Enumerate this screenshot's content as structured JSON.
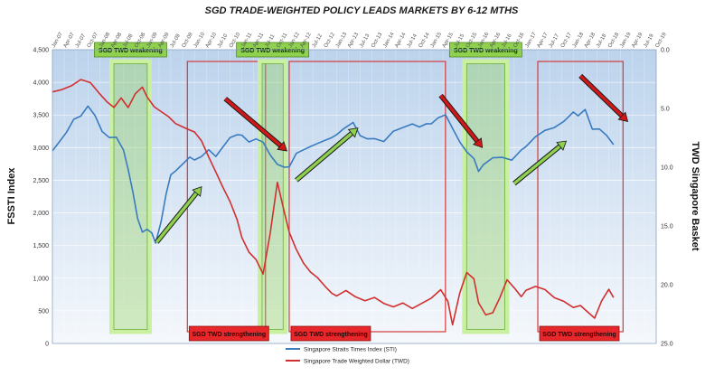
{
  "chart_data": {
    "type": "line",
    "title": "SGD TRADE-WEIGHTED  POLICY LEADS MARKETS BY 6-12 MTHS",
    "ylabel_left": "FSSTI Index",
    "ylabel_right": "TWD Singapore Basket",
    "ylim_left": [
      0,
      4500
    ],
    "ylim_right_inverted": [
      0.0,
      25.0
    ],
    "y_left_ticks": [
      "4,500",
      "4,000",
      "3,500",
      "3,000",
      "2,500",
      "2,000",
      "1,500",
      "1,000",
      "500",
      "0"
    ],
    "y_left_values": [
      4500,
      4000,
      3500,
      3000,
      2500,
      2000,
      1500,
      1000,
      500,
      0
    ],
    "y_right_ticks": [
      "0.0",
      "5.0",
      "10.0",
      "15.0",
      "20.0",
      "25.0"
    ],
    "y_right_values": [
      0,
      5,
      10,
      15,
      20,
      25
    ],
    "x_start": 2007.0,
    "x_end": 2019.75,
    "x_ticks": [
      "Jan-07",
      "Apr-07",
      "Jul-07",
      "Oct-07",
      "Jan-08",
      "Apr-08",
      "Jul-08",
      "Oct-08",
      "Jan-09",
      "Apr-09",
      "Jul-09",
      "Oct-09",
      "Jan-10",
      "Apr-10",
      "Jul-10",
      "Oct-10",
      "Jan-11",
      "Apr-11",
      "Jul-11",
      "Oct-11",
      "Jan-12",
      "Apr-12",
      "Jul-12",
      "Oct-12",
      "Jan-13",
      "Apr-13",
      "Jul-13",
      "Oct-13",
      "Jan-14",
      "Apr-14",
      "Jul-14",
      "Oct-14",
      "Jan-15",
      "Apr-15",
      "Jul-15",
      "Oct-15",
      "Jan-16",
      "Apr-16",
      "Jul-16",
      "Oct-16",
      "Jan-17",
      "Apr-17",
      "Jul-17",
      "Oct-17",
      "Jan-18",
      "Apr-18",
      "Jul-18",
      "Oct-18",
      "Jan-19",
      "Apr-19",
      "Jul-19",
      "Oct-19"
    ],
    "grid": true,
    "legend_position": "bottom-center",
    "series": [
      {
        "name": "Singapore Straits Times Index (STI)",
        "color": "#3a7bbf",
        "axis": "left",
        "x": [
          2007.0,
          2007.15,
          2007.3,
          2007.45,
          2007.6,
          2007.75,
          2007.9,
          2008.05,
          2008.2,
          2008.35,
          2008.5,
          2008.6,
          2008.7,
          2008.8,
          2008.9,
          2009.0,
          2009.1,
          2009.18,
          2009.3,
          2009.4,
          2009.5,
          2009.6,
          2009.75,
          2009.9,
          2010.0,
          2010.15,
          2010.3,
          2010.45,
          2010.6,
          2010.75,
          2010.9,
          2011.0,
          2011.15,
          2011.3,
          2011.45,
          2011.6,
          2011.75,
          2011.9,
          2012.0,
          2012.15,
          2012.3,
          2012.45,
          2012.6,
          2012.75,
          2012.9,
          2013.0,
          2013.15,
          2013.35,
          2013.5,
          2013.65,
          2013.8,
          2014.0,
          2014.2,
          2014.4,
          2014.6,
          2014.75,
          2014.9,
          2015.0,
          2015.15,
          2015.3,
          2015.45,
          2015.6,
          2015.75,
          2015.9,
          2016.0,
          2016.1,
          2016.3,
          2016.5,
          2016.7,
          2016.9,
          2017.0,
          2017.2,
          2017.4,
          2017.6,
          2017.8,
          2018.0,
          2018.1,
          2018.25,
          2018.4,
          2018.55,
          2018.7,
          2018.85
        ],
        "values": [
          2950,
          3100,
          3250,
          3450,
          3500,
          3650,
          3500,
          3250,
          3150,
          3150,
          2950,
          2650,
          2300,
          1900,
          1700,
          1750,
          1700,
          1550,
          1900,
          2300,
          2600,
          2650,
          2750,
          2850,
          2800,
          2850,
          2950,
          2850,
          3000,
          3150,
          3200,
          3200,
          3100,
          3150,
          3100,
          2900,
          2750,
          2700,
          2700,
          2900,
          2950,
          3000,
          3050,
          3100,
          3150,
          3200,
          3300,
          3400,
          3200,
          3150,
          3150,
          3100,
          3250,
          3300,
          3350,
          3300,
          3350,
          3350,
          3450,
          3500,
          3300,
          3100,
          2950,
          2850,
          2650,
          2750,
          2850,
          2850,
          2800,
          2950,
          3000,
          3150,
          3250,
          3300,
          3400,
          3550,
          3500,
          3600,
          3300,
          3300,
          3200,
          3050
        ]
      },
      {
        "name": "Singapore Trade Weighted Dollar (TWD)",
        "color": "#d12f2f",
        "axis": "right",
        "x": [
          2007.0,
          2007.2,
          2007.4,
          2007.6,
          2007.8,
          2008.0,
          2008.15,
          2008.3,
          2008.45,
          2008.6,
          2008.75,
          2008.9,
          2009.0,
          2009.15,
          2009.3,
          2009.45,
          2009.6,
          2009.75,
          2009.9,
          2010.0,
          2010.15,
          2010.3,
          2010.45,
          2010.6,
          2010.75,
          2010.9,
          2011.0,
          2011.15,
          2011.3,
          2011.45,
          2011.6,
          2011.75,
          2011.9,
          2012.0,
          2012.15,
          2012.3,
          2012.45,
          2012.6,
          2012.75,
          2012.9,
          2013.0,
          2013.2,
          2013.4,
          2013.6,
          2013.8,
          2014.0,
          2014.2,
          2014.4,
          2014.6,
          2014.8,
          2015.0,
          2015.2,
          2015.35,
          2015.45,
          2015.6,
          2015.75,
          2015.9,
          2016.0,
          2016.15,
          2016.3,
          2016.45,
          2016.6,
          2016.75,
          2016.9,
          2017.0,
          2017.2,
          2017.4,
          2017.6,
          2017.8,
          2018.0,
          2018.15,
          2018.3,
          2018.45,
          2018.6,
          2018.75,
          2018.85
        ],
        "values": [
          3.5,
          3.3,
          3.0,
          2.5,
          2.8,
          3.8,
          4.5,
          5.0,
          4.2,
          5.0,
          3.8,
          3.2,
          4.0,
          4.8,
          5.2,
          5.6,
          6.2,
          6.5,
          6.8,
          7.0,
          7.8,
          9.2,
          10.5,
          11.8,
          13.0,
          14.5,
          16.0,
          17.2,
          17.8,
          19.0,
          15.5,
          11.2,
          13.8,
          15.5,
          17.0,
          18.2,
          19.0,
          19.5,
          20.2,
          20.8,
          21.0,
          20.5,
          21.0,
          21.3,
          21.0,
          21.5,
          21.8,
          21.5,
          22.0,
          21.6,
          21.2,
          20.5,
          21.5,
          23.5,
          20.8,
          19.0,
          19.5,
          21.5,
          22.5,
          22.3,
          21.0,
          19.5,
          20.2,
          21.0,
          20.5,
          20.2,
          20.5,
          21.2,
          21.5,
          22.0,
          21.8,
          22.3,
          22.8,
          21.3,
          20.3,
          21.0
        ]
      }
    ],
    "annotations": [
      {
        "label": "SGD TWD weakening",
        "kind": "weakening",
        "x0": 2008.25,
        "x1": 2009.05
      },
      {
        "label": "SGD TWD strengthening",
        "kind": "strengthening",
        "x0": 2009.85,
        "x1": 2011.5
      },
      {
        "label": "SGD TWD weakening",
        "kind": "weakening",
        "x0": 2011.38,
        "x1": 2011.92
      },
      {
        "label": "SGD TWD strengthening",
        "kind": "strengthening",
        "x0": 2012.0,
        "x1": 2015.3
      },
      {
        "label": "SGD TWD weakening",
        "kind": "weakening",
        "x0": 2015.7,
        "x1": 2016.6
      },
      {
        "label": "SGD TWD strengthening",
        "kind": "strengthening",
        "x0": 2017.25,
        "x1": 2019.05
      }
    ],
    "trend_arrows": [
      {
        "dir": "up",
        "x0": 2009.2,
        "y0": 1550,
        "x1": 2010.15,
        "y1": 2400
      },
      {
        "dir": "down",
        "x0": 2010.65,
        "y0": 3750,
        "x1": 2011.95,
        "y1": 2950
      },
      {
        "dir": "up",
        "x0": 2012.15,
        "y0": 2500,
        "x1": 2013.45,
        "y1": 3300
      },
      {
        "dir": "down",
        "x0": 2015.2,
        "y0": 3800,
        "x1": 2016.08,
        "y1": 3000
      },
      {
        "dir": "up",
        "x0": 2016.75,
        "y0": 2450,
        "x1": 2017.85,
        "y1": 3100
      },
      {
        "dir": "down",
        "x0": 2018.15,
        "y0": 4100,
        "x1": 2019.15,
        "y1": 3400
      }
    ],
    "colors": {
      "plot_bg_top": "#bcd3ec",
      "plot_bg_bottom": "#f5f8fc",
      "weakening_fill": "#8fd14f",
      "weakening_box": "#c8f0a0",
      "strengthening_fill": "#e8272a",
      "strengthening_box": "#d23b3b",
      "up_arrow": "#8fd14f",
      "down_arrow": "#d01818"
    }
  }
}
